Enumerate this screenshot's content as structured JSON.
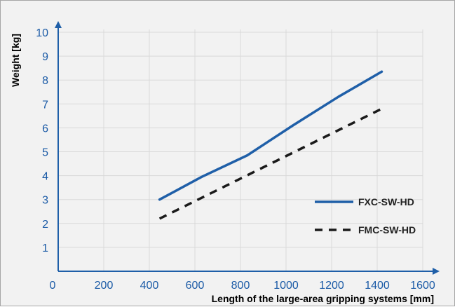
{
  "chart_data": {
    "type": "line",
    "title": "",
    "xlabel": "Length of the large-area gripping systems [mm]",
    "ylabel": "Weight [kg]",
    "xlim": [
      0,
      1600
    ],
    "ylim": [
      0,
      10
    ],
    "x_ticks": [
      "0",
      "200",
      "400",
      "600",
      "800",
      "1000",
      "1200",
      "1400",
      "1600"
    ],
    "y_ticks": [
      "1",
      "2",
      "3",
      "4",
      "5",
      "6",
      "7",
      "8",
      "9",
      "10"
    ],
    "grid": true,
    "legend_position": "bottom-right",
    "series": [
      {
        "name": "FXC-SW-HD",
        "style": "solid",
        "color": "#1f5fa8",
        "x": [
          445,
          630,
          830,
          1030,
          1230,
          1420
        ],
        "y": [
          3.0,
          3.95,
          4.85,
          6.1,
          7.3,
          8.35
        ]
      },
      {
        "name": "FMC-SW-HD",
        "style": "dashed",
        "color": "#1a1a1a",
        "x": [
          445,
          1420
        ],
        "y": [
          2.2,
          6.8
        ]
      }
    ]
  },
  "colors": {
    "background": "#f2f2f2",
    "grid": "#d9d9d9",
    "axis": "#1f5fa8",
    "tick_text": "#1a5aa6"
  }
}
